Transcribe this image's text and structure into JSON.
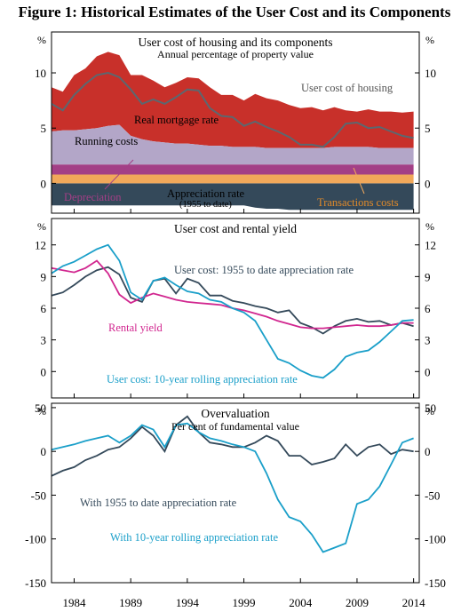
{
  "figure": {
    "title": "Figure 1: Historical Estimates of the User Cost and its Components"
  },
  "x_axis": {
    "range": [
      1982,
      2014.5
    ],
    "ticks": [
      1984,
      1989,
      1994,
      1999,
      2004,
      2009,
      2014
    ],
    "tick_labels": [
      "1984",
      "1989",
      "1994",
      "1999",
      "2004",
      "2009",
      "2014"
    ]
  },
  "colors": {
    "real_mortgage": "#c8302a",
    "running": "#b3a6c8",
    "depreciation": "#a33f86",
    "transactions": "#f1a85a",
    "appreciation": "#34495a",
    "grey_line": "#5b6870",
    "dark_line": "#34495a",
    "pink_line": "#d1268f",
    "blue_line": "#1a9fc9"
  },
  "chart_data": [
    {
      "type": "area",
      "title": "User cost of housing and its components",
      "subtitle": "Annual percentage of property value",
      "unit_label": "%",
      "ylim": [
        -2.7,
        13.7
      ],
      "y_ticks": [
        0,
        5,
        10
      ],
      "y_tick_labels": [
        "0",
        "5",
        "10"
      ],
      "x": [
        1982,
        1983,
        1984,
        1985,
        1986,
        1987,
        1988,
        1989,
        1990,
        1991,
        1992,
        1993,
        1994,
        1995,
        1996,
        1997,
        1998,
        1999,
        2000,
        2001,
        2002,
        2003,
        2004,
        2005,
        2006,
        2007,
        2008,
        2009,
        2010,
        2011,
        2012,
        2013,
        2014
      ],
      "series": [
        {
          "name": "Transactions costs",
          "layer": "positive",
          "values": [
            0.8,
            0.8,
            0.8,
            0.8,
            0.8,
            0.8,
            0.8,
            0.8,
            0.8,
            0.8,
            0.8,
            0.8,
            0.8,
            0.8,
            0.8,
            0.8,
            0.8,
            0.8,
            0.8,
            0.8,
            0.8,
            0.8,
            0.8,
            0.8,
            0.8,
            0.8,
            0.8,
            0.8,
            0.8,
            0.8,
            0.8,
            0.8,
            0.8
          ]
        },
        {
          "name": "Depreciation",
          "layer": "positive",
          "values": [
            0.9,
            0.9,
            0.9,
            0.9,
            0.9,
            0.9,
            0.9,
            0.9,
            0.9,
            0.9,
            0.9,
            0.9,
            0.9,
            0.9,
            0.9,
            0.9,
            0.9,
            0.9,
            0.9,
            0.9,
            0.9,
            0.9,
            0.9,
            0.9,
            0.9,
            0.9,
            0.9,
            0.9,
            0.9,
            0.9,
            0.9,
            0.9,
            0.9
          ]
        },
        {
          "name": "Running costs",
          "layer": "positive",
          "values": [
            3.0,
            3.1,
            3.1,
            3.2,
            3.3,
            3.5,
            3.6,
            2.6,
            2.3,
            2.1,
            2.0,
            1.9,
            1.9,
            1.8,
            1.7,
            1.7,
            1.6,
            1.6,
            1.6,
            1.5,
            1.5,
            1.5,
            1.5,
            1.5,
            1.5,
            1.6,
            1.6,
            1.6,
            1.6,
            1.5,
            1.5,
            1.5,
            1.5
          ]
        },
        {
          "name": "Real mortgage rate",
          "layer": "positive",
          "values": [
            4.0,
            3.5,
            5.0,
            5.5,
            6.5,
            6.7,
            6.3,
            5.5,
            5.8,
            5.5,
            5.0,
            5.5,
            6.0,
            6.0,
            5.3,
            4.6,
            4.7,
            4.2,
            4.8,
            4.5,
            4.3,
            3.9,
            3.6,
            3.7,
            3.4,
            3.6,
            3.3,
            3.2,
            3.4,
            3.3,
            3.3,
            3.2,
            3.3
          ]
        },
        {
          "name": "Appreciation rate",
          "layer": "negative",
          "values": [
            -2.0,
            -2.0,
            -2.0,
            -2.0,
            -2.0,
            -2.0,
            -2.0,
            -2.0,
            -2.0,
            -2.0,
            -2.0,
            -2.0,
            -2.0,
            -2.0,
            -2.0,
            -2.0,
            -2.0,
            -2.0,
            -2.2,
            -2.3,
            -2.3,
            -2.4,
            -2.4,
            -2.4,
            -2.4,
            -2.4,
            -2.4,
            -2.4,
            -2.4,
            -2.4,
            -2.4,
            -2.4,
            -2.4
          ]
        },
        {
          "name": "User cost of housing",
          "layer": "line",
          "values": [
            7.2,
            6.6,
            8.0,
            9.0,
            9.8,
            10.0,
            9.6,
            8.5,
            7.2,
            7.6,
            7.2,
            7.8,
            8.5,
            8.4,
            6.8,
            6.1,
            6.0,
            5.2,
            5.6,
            5.1,
            4.7,
            4.2,
            3.5,
            3.5,
            3.3,
            4.2,
            5.4,
            5.5,
            5.0,
            5.1,
            4.7,
            4.3,
            4.1
          ]
        }
      ],
      "annotations": [
        "User cost of housing",
        "Real mortgage rate",
        "Running costs",
        "Depreciation",
        "Appreciation rate",
        "(1955 to date)",
        "Transactions costs"
      ]
    },
    {
      "type": "line",
      "title": "User cost and rental yield",
      "unit_label": "%",
      "ylim": [
        -2.5,
        14.5
      ],
      "y_ticks": [
        0,
        3,
        6,
        9,
        12
      ],
      "y_tick_labels": [
        "0",
        "3",
        "6",
        "9",
        "12"
      ],
      "x": [
        1982,
        1983,
        1984,
        1985,
        1986,
        1987,
        1988,
        1989,
        1990,
        1991,
        1992,
        1993,
        1994,
        1995,
        1996,
        1997,
        1998,
        1999,
        2000,
        2001,
        2002,
        2003,
        2004,
        2005,
        2006,
        2007,
        2008,
        2009,
        2010,
        2011,
        2012,
        2013,
        2014
      ],
      "series": [
        {
          "name": "User cost: 1955 to date appreciation rate",
          "values": [
            7.2,
            7.5,
            8.2,
            9.0,
            9.6,
            9.9,
            9.2,
            7.0,
            6.6,
            8.6,
            8.8,
            7.4,
            8.8,
            8.4,
            7.2,
            7.2,
            6.7,
            6.5,
            6.2,
            6.0,
            5.6,
            5.8,
            4.6,
            4.2,
            3.6,
            4.3,
            4.8,
            5.0,
            4.7,
            4.8,
            4.4,
            4.6,
            4.3
          ]
        },
        {
          "name": "Rental yield",
          "values": [
            9.8,
            9.6,
            9.4,
            9.8,
            10.5,
            9.3,
            7.3,
            6.5,
            7.0,
            7.4,
            7.1,
            6.8,
            6.6,
            6.5,
            6.4,
            6.3,
            6.0,
            5.8,
            5.5,
            5.2,
            4.8,
            4.5,
            4.2,
            4.1,
            4.1,
            4.2,
            4.3,
            4.4,
            4.3,
            4.3,
            4.4,
            4.6,
            4.6
          ]
        },
        {
          "name": "User cost: 10-year rolling appreciation rate",
          "values": [
            9.3,
            10.0,
            10.4,
            11.0,
            11.6,
            12.0,
            10.5,
            7.5,
            6.8,
            8.6,
            8.9,
            8.2,
            7.6,
            7.4,
            6.8,
            6.6,
            6.0,
            5.6,
            4.8,
            3.0,
            1.2,
            0.8,
            0.1,
            -0.4,
            -0.6,
            0.2,
            1.4,
            1.8,
            2.0,
            2.8,
            3.8,
            4.8,
            4.9
          ]
        }
      ],
      "annotations": [
        "User cost: 1955 to date appreciation rate",
        "Rental yield",
        "User cost: 10-year rolling appreciation rate"
      ]
    },
    {
      "type": "line",
      "title": "Overvaluation",
      "subtitle": "Per cent of fundamental value",
      "unit_label": "%",
      "ylim": [
        -150,
        55
      ],
      "y_ticks": [
        -150,
        -100,
        -50,
        0,
        50
      ],
      "y_tick_labels": [
        "-150",
        "-100",
        "-50",
        "0",
        "50"
      ],
      "x": [
        1982,
        1983,
        1984,
        1985,
        1986,
        1987,
        1988,
        1989,
        1990,
        1991,
        1992,
        1993,
        1994,
        1995,
        1996,
        1997,
        1998,
        1999,
        2000,
        2001,
        2002,
        2003,
        2004,
        2005,
        2006,
        2007,
        2008,
        2009,
        2010,
        2011,
        2012,
        2013,
        2014
      ],
      "series": [
        {
          "name": "With 1955 to date appreciation rate",
          "values": [
            -28,
            -22,
            -18,
            -10,
            -5,
            2,
            5,
            15,
            28,
            18,
            0,
            30,
            40,
            22,
            10,
            8,
            5,
            5,
            10,
            18,
            12,
            -5,
            -5,
            -15,
            -12,
            -8,
            8,
            -5,
            5,
            8,
            -3,
            2,
            0
          ]
        },
        {
          "name": "With 10-year rolling appreciation rate",
          "values": [
            2,
            5,
            8,
            12,
            15,
            18,
            10,
            18,
            30,
            25,
            5,
            30,
            32,
            22,
            15,
            12,
            8,
            5,
            0,
            -25,
            -55,
            -75,
            -80,
            -95,
            -115,
            -110,
            -105,
            -60,
            -55,
            -40,
            -15,
            10,
            15
          ]
        }
      ],
      "annotations": [
        "With 1955 to date appreciation rate",
        "With 10-year rolling appreciation rate"
      ]
    }
  ]
}
